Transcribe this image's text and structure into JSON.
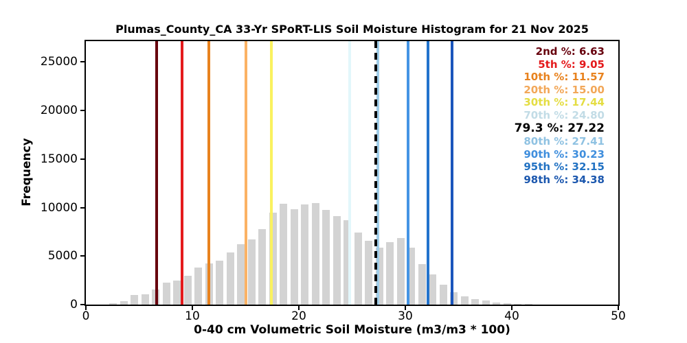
{
  "chart_data": {
    "type": "bar",
    "subtype": "histogram",
    "title": "Plumas_County_CA 33-Yr SPoRT-LIS Soil Moisture Histogram for 21 Nov 2025",
    "xlabel": "0-40 cm Volumetric Soil Moisture (m3/m3 * 100)",
    "ylabel": "Frequency",
    "xlim": [
      0,
      50
    ],
    "ylim": [
      0,
      27150
    ],
    "x_ticks": [
      0,
      10,
      20,
      30,
      40,
      50
    ],
    "y_ticks": [
      0,
      5000,
      10000,
      15000,
      20000,
      25000
    ],
    "grid": false,
    "legend_position": "top-right inside axes, right-aligned, no frame",
    "bar_color": "#d3d3d3",
    "bin_width": 1,
    "bins": [
      {
        "start": 2,
        "freq": 170
      },
      {
        "start": 3,
        "freq": 360
      },
      {
        "start": 4,
        "freq": 960
      },
      {
        "start": 5,
        "freq": 1060
      },
      {
        "start": 6,
        "freq": 1550
      },
      {
        "start": 7,
        "freq": 2260
      },
      {
        "start": 8,
        "freq": 2480
      },
      {
        "start": 9,
        "freq": 2950
      },
      {
        "start": 10,
        "freq": 3850
      },
      {
        "start": 11,
        "freq": 4250
      },
      {
        "start": 12,
        "freq": 4500
      },
      {
        "start": 13,
        "freq": 5400
      },
      {
        "start": 14,
        "freq": 6200
      },
      {
        "start": 15,
        "freq": 6750
      },
      {
        "start": 16,
        "freq": 7750
      },
      {
        "start": 17,
        "freq": 9450
      },
      {
        "start": 18,
        "freq": 10400
      },
      {
        "start": 19,
        "freq": 9850
      },
      {
        "start": 20,
        "freq": 10350
      },
      {
        "start": 21,
        "freq": 10450
      },
      {
        "start": 22,
        "freq": 9750
      },
      {
        "start": 23,
        "freq": 9100
      },
      {
        "start": 24,
        "freq": 8700
      },
      {
        "start": 25,
        "freq": 7400
      },
      {
        "start": 26,
        "freq": 6600
      },
      {
        "start": 27,
        "freq": 5850
      },
      {
        "start": 28,
        "freq": 6450
      },
      {
        "start": 29,
        "freq": 6850
      },
      {
        "start": 30,
        "freq": 5850
      },
      {
        "start": 31,
        "freq": 4200
      },
      {
        "start": 32,
        "freq": 3100
      },
      {
        "start": 33,
        "freq": 2050
      },
      {
        "start": 34,
        "freq": 1300
      },
      {
        "start": 35,
        "freq": 850
      },
      {
        "start": 36,
        "freq": 600
      },
      {
        "start": 37,
        "freq": 420
      },
      {
        "start": 38,
        "freq": 230
      },
      {
        "start": 39,
        "freq": 180
      },
      {
        "start": 40,
        "freq": 60
      },
      {
        "start": 41,
        "freq": 50
      }
    ],
    "percentile_lines": [
      {
        "label": "2nd %",
        "value": 6.63,
        "value_text": "6.63",
        "color": "#67000d",
        "text_color": "#67000d",
        "style": "solid",
        "bold": false
      },
      {
        "label": "5th %",
        "value": 9.05,
        "value_text": "9.05",
        "color": "#e41a1c",
        "text_color": "#e41a1c",
        "style": "solid",
        "bold": false
      },
      {
        "label": "10th %",
        "value": 11.57,
        "value_text": "11.57",
        "color": "#e8821e",
        "text_color": "#e8821e",
        "style": "solid",
        "bold": false
      },
      {
        "label": "20th %",
        "value": 15.0,
        "value_text": "15.00",
        "color": "#fbb264",
        "text_color": "#f2a758",
        "style": "solid",
        "bold": false
      },
      {
        "label": "30th %",
        "value": 17.44,
        "value_text": "17.44",
        "color": "#faf25f",
        "text_color": "#e4dd42",
        "style": "solid",
        "bold": false
      },
      {
        "label": "70th %",
        "value": 24.8,
        "value_text": "24.80",
        "color": "#e2f7fb",
        "text_color": "#c2dce6",
        "style": "solid",
        "bold": false
      },
      {
        "label": "79.3 %",
        "value": 27.22,
        "value_text": "27.22",
        "color": "#000000",
        "text_color": "#000000",
        "style": "dashed",
        "bold": true
      },
      {
        "label": "80th %",
        "value": 27.41,
        "value_text": "27.41",
        "color": "#a0cde8",
        "text_color": "#8fc2e2",
        "style": "solid",
        "bold": false
      },
      {
        "label": "90th %",
        "value": 30.23,
        "value_text": "30.23",
        "color": "#4494e4",
        "text_color": "#3f8edd",
        "style": "solid",
        "bold": false
      },
      {
        "label": "95th %",
        "value": 32.15,
        "value_text": "32.15",
        "color": "#2273cc",
        "text_color": "#2272c3",
        "style": "solid",
        "bold": false
      },
      {
        "label": "98th %",
        "value": 34.38,
        "value_text": "34.38",
        "color": "#1a55bc",
        "text_color": "#1b57ae",
        "style": "solid",
        "bold": false
      }
    ]
  }
}
